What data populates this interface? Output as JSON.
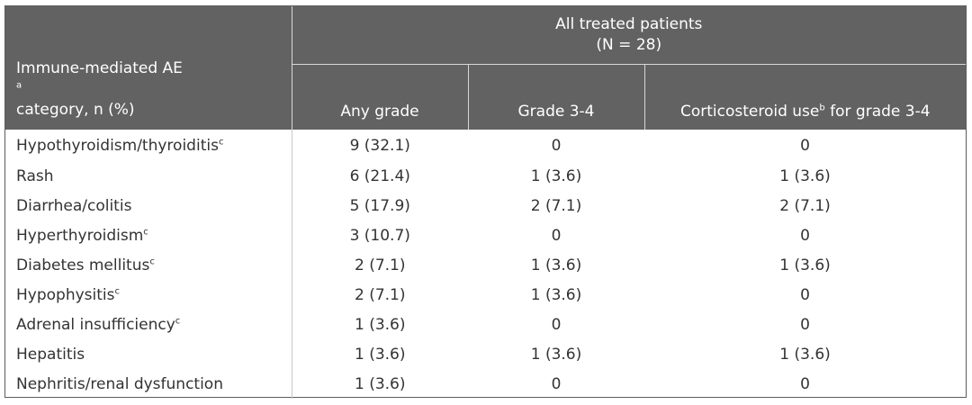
{
  "header": {
    "group_line1": "All treated patients",
    "group_line2": "(N = 28)",
    "category_line1": "Immune-mediated AE",
    "category_sup": "a",
    "category_line2": "category, n (%)",
    "col_any_grade": "Any grade",
    "col_grade34": "Grade 3-4",
    "col_cortico_pre": "Corticosteroid use",
    "col_cortico_sup": "b",
    "col_cortico_post": " for grade 3-4"
  },
  "rows": [
    {
      "category": "Hypothyroidism/thyroiditis",
      "sup": "c",
      "any": "9 (32.1)",
      "g34": "0",
      "cortico": "0"
    },
    {
      "category": "Rash",
      "sup": "",
      "any": "6 (21.4)",
      "g34": "1 (3.6)",
      "cortico": "1 (3.6)"
    },
    {
      "category": "Diarrhea/colitis",
      "sup": "",
      "any": "5 (17.9)",
      "g34": "2 (7.1)",
      "cortico": "2 (7.1)"
    },
    {
      "category": "Hyperthyroidism",
      "sup": "c",
      "any": "3 (10.7)",
      "g34": "0",
      "cortico": "0"
    },
    {
      "category": "Diabetes mellitus",
      "sup": "c",
      "any": "2 (7.1)",
      "g34": "1 (3.6)",
      "cortico": "1 (3.6)"
    },
    {
      "category": "Hypophysitis",
      "sup": "c",
      "any": "2 (7.1)",
      "g34": "1 (3.6)",
      "cortico": "0"
    },
    {
      "category": "Adrenal insufficiency",
      "sup": "c",
      "any": "1 (3.6)",
      "g34": "0",
      "cortico": "0"
    },
    {
      "category": "Hepatitis",
      "sup": "",
      "any": "1 (3.6)",
      "g34": "1 (3.6)",
      "cortico": "1 (3.6)"
    },
    {
      "category": "Nephritis/renal dysfunction",
      "sup": "",
      "any": "1 (3.6)",
      "g34": "0",
      "cortico": "0"
    }
  ]
}
